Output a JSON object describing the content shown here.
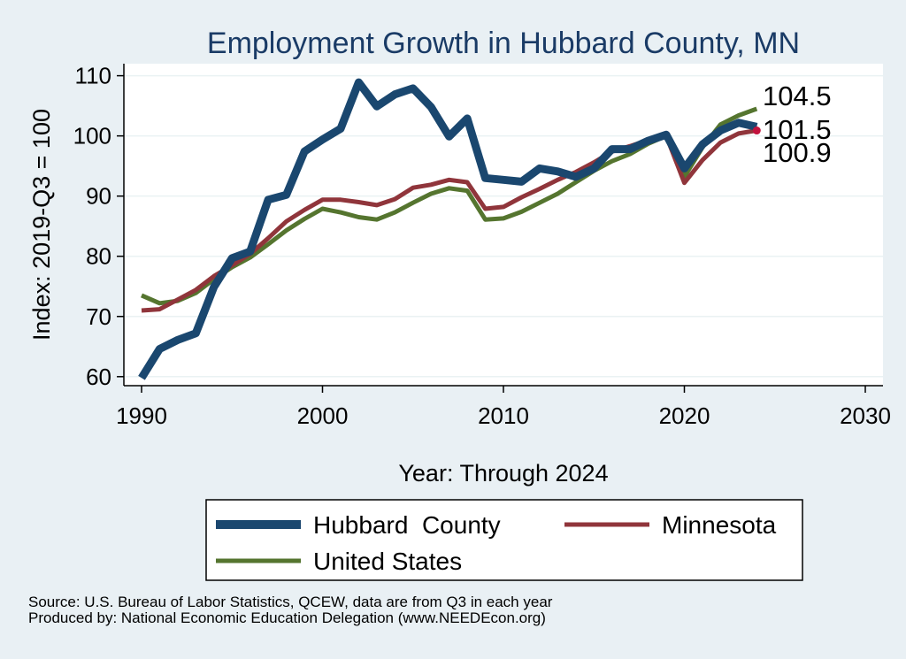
{
  "chart_data": {
    "type": "line",
    "title": "Employment Growth in Hubbard County, MN",
    "xlabel": "Year: Through 2024",
    "ylabel": "Index: 2019-Q3 = 100",
    "xlim": [
      1990,
      2030
    ],
    "ylim": [
      58.5,
      112
    ],
    "xticks": [
      1990,
      2000,
      2010,
      2020,
      2030
    ],
    "yticks": [
      60,
      70,
      80,
      90,
      100,
      110
    ],
    "grid": true,
    "legend_position": "bottom",
    "x": [
      1990,
      1991,
      1992,
      1993,
      1994,
      1995,
      1996,
      1997,
      1998,
      1999,
      2000,
      2001,
      2002,
      2003,
      2004,
      2005,
      2006,
      2007,
      2008,
      2009,
      2010,
      2011,
      2012,
      2013,
      2014,
      2015,
      2016,
      2017,
      2018,
      2019,
      2020,
      2021,
      2022,
      2023,
      2024
    ],
    "series": [
      {
        "name": "Hubbard  County",
        "color": "#1a476f",
        "values": [
          59.8,
          64.6,
          66.1,
          67.2,
          74.9,
          79.7,
          80.8,
          89.4,
          90.2,
          97.4,
          99.4,
          101.2,
          108.9,
          104.9,
          106.9,
          107.9,
          104.8,
          99.9,
          102.9,
          93.0,
          92.7,
          92.4,
          94.6,
          94.1,
          93.2,
          94.6,
          97.8,
          97.8,
          99.2,
          100.2,
          94.6,
          98.6,
          100.9,
          102.2,
          101.5
        ],
        "end_label": "101.5"
      },
      {
        "name": "Minnesota",
        "color": "#90353b",
        "values": [
          71.0,
          71.2,
          72.8,
          74.4,
          76.7,
          78.5,
          80.4,
          83.0,
          85.8,
          87.7,
          89.4,
          89.4,
          89.0,
          88.5,
          89.5,
          91.4,
          91.9,
          92.7,
          92.3,
          87.9,
          88.2,
          89.8,
          91.2,
          92.7,
          94.0,
          95.6,
          97.4,
          98.3,
          99.3,
          100.0,
          92.2,
          96.0,
          98.9,
          100.4,
          100.9
        ],
        "end_label": "100.9"
      },
      {
        "name": "United States",
        "color": "#55752f",
        "values": [
          73.5,
          72.2,
          72.6,
          73.9,
          76.2,
          78.2,
          79.8,
          82.0,
          84.3,
          86.2,
          87.9,
          87.3,
          86.5,
          86.1,
          87.3,
          88.9,
          90.4,
          91.3,
          90.9,
          86.1,
          86.3,
          87.4,
          88.9,
          90.4,
          92.3,
          94.2,
          95.8,
          97.0,
          98.7,
          100.0,
          93.2,
          98.1,
          101.9,
          103.4,
          104.5
        ],
        "end_label": "104.5"
      }
    ],
    "legend": {
      "entries": [
        "Hubbard  County",
        "Minnesota",
        "United States"
      ]
    }
  },
  "footer": {
    "source": "Source: U.S. Bureau of Labor Statistics, QCEW, data are from Q3 in each year",
    "produced": "Produced by: National Economic Education Delegation (www.NEEDEcon.org)"
  }
}
